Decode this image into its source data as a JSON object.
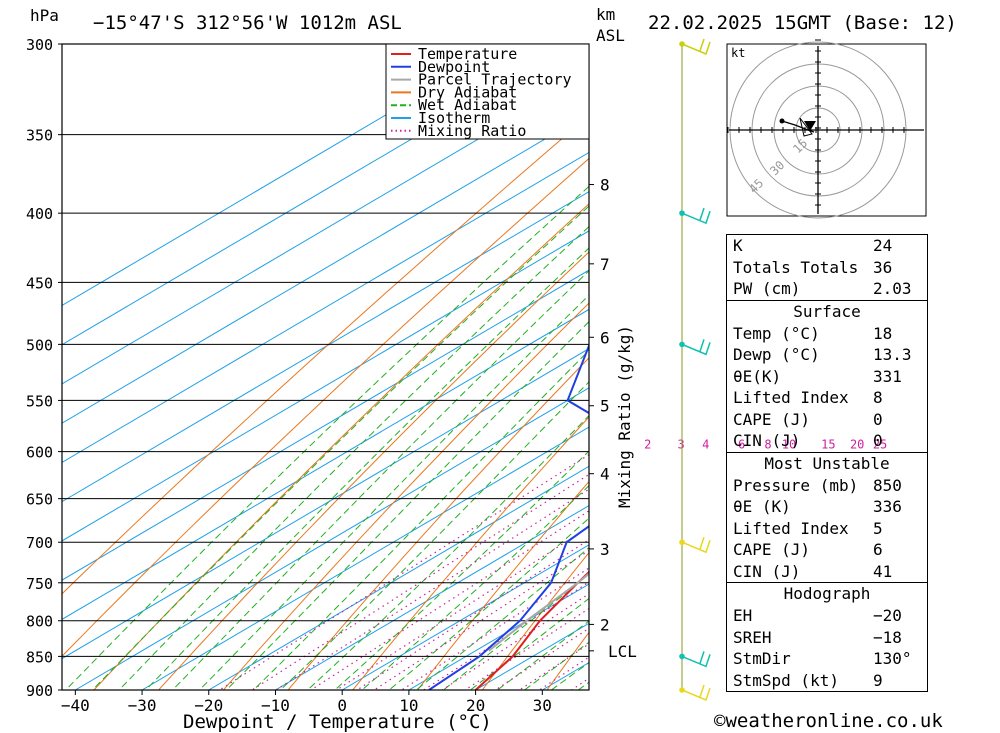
{
  "header": {
    "p_unit": "hPa",
    "location": "−15°47'S  312°56'W  1012m  ASL",
    "km_unit_line1": "km",
    "km_unit_line2": "ASL",
    "datetime": "22.02.2025  15GMT  (Base: 12)"
  },
  "footer": "©weatheronline.co.uk",
  "chart_data": {
    "type": "skew-t",
    "xlabel": "Dewpoint / Temperature (°C)",
    "right_axis_label": "Mixing Ratio (g/kg)",
    "pressure_levels": [
      300,
      350,
      400,
      450,
      500,
      550,
      600,
      650,
      700,
      750,
      800,
      850,
      900
    ],
    "pressure_range": [
      300,
      900
    ],
    "temp_ticks": [
      -40,
      -30,
      -20,
      -10,
      0,
      10,
      20,
      30
    ],
    "temp_range_at_bottom": [
      -42,
      37
    ],
    "km_ticks": [
      {
        "label": "8",
        "p": 381
      },
      {
        "label": "7",
        "p": 436
      },
      {
        "label": "6",
        "p": 494
      },
      {
        "label": "5",
        "p": 555
      },
      {
        "label": "4",
        "p": 623
      },
      {
        "label": "3",
        "p": 708
      },
      {
        "label": "2",
        "p": 805
      },
      {
        "label": "LCL",
        "p": 842
      }
    ],
    "mixing_ratio_labels": [
      "2",
      "3",
      "4",
      "6",
      "8",
      "10",
      "15",
      "20",
      "25"
    ],
    "mixing_ratio_values": [
      2,
      3,
      4,
      6,
      8,
      10,
      15,
      20,
      25
    ],
    "legend": [
      "Temperature",
      "Dewpoint",
      "Parcel Trajectory",
      "Dry Adiabat",
      "Wet Adiabat",
      "Isotherm",
      "Mixing Ratio"
    ],
    "colors": {
      "temperature": "#e02020",
      "dewpoint": "#2040e0",
      "parcel": "#a8a8a8",
      "dry_adiabat": "#e87820",
      "wet_adiabat": "#20b020",
      "isotherm": "#20a0e8",
      "mixing_ratio": "#d0209c"
    },
    "series": [
      {
        "name": "Temperature",
        "points": [
          [
            300,
            -34
          ],
          [
            350,
            -27
          ],
          [
            400,
            -19
          ],
          [
            450,
            -11
          ],
          [
            500,
            -6
          ],
          [
            550,
            -3
          ],
          [
            600,
            -4
          ],
          [
            650,
            -1
          ],
          [
            700,
            4
          ],
          [
            750,
            8
          ],
          [
            800,
            12
          ],
          [
            850,
            17
          ],
          [
            900,
            20
          ]
        ]
      },
      {
        "name": "Dewpoint",
        "points": [
          [
            300,
            -62
          ],
          [
            350,
            -54
          ],
          [
            400,
            -55
          ],
          [
            450,
            -62
          ],
          [
            500,
            -51
          ],
          [
            550,
            -40
          ],
          [
            600,
            -14
          ],
          [
            650,
            -6
          ],
          [
            700,
            -4
          ],
          [
            750,
            4
          ],
          [
            800,
            9
          ],
          [
            850,
            12
          ],
          [
            900,
            13
          ]
        ]
      },
      {
        "name": "Parcel Trajectory",
        "points": [
          [
            300,
            -47
          ],
          [
            350,
            -35
          ],
          [
            400,
            -25
          ],
          [
            450,
            -17
          ],
          [
            500,
            -10
          ],
          [
            550,
            -5
          ],
          [
            600,
            -1
          ],
          [
            650,
            3
          ],
          [
            700,
            5
          ],
          [
            750,
            8
          ],
          [
            800,
            10
          ],
          [
            842,
            12
          ]
        ]
      }
    ],
    "wind_barbs": [
      {
        "p": 300,
        "color": "#c8d010"
      },
      {
        "p": 400,
        "color": "#10c0b0"
      },
      {
        "p": 500,
        "color": "#10c0b0"
      },
      {
        "p": 700,
        "color": "#e8d820"
      },
      {
        "p": 850,
        "color": "#10c0b0"
      },
      {
        "p": 900,
        "color": "#e8d820"
      }
    ]
  },
  "hodograph": {
    "unit": "kt",
    "ring_labels": [
      "15",
      "30",
      "45"
    ]
  },
  "indices": {
    "rows": [
      {
        "label": "K",
        "value": "24"
      },
      {
        "label": "Totals Totals",
        "value": "36"
      },
      {
        "label": "PW (cm)",
        "value": "2.03"
      }
    ]
  },
  "surface": {
    "title": "Surface",
    "rows": [
      {
        "label": "Temp (°C)",
        "value": "18"
      },
      {
        "label": "Dewp (°C)",
        "value": "13.3"
      },
      {
        "label": "θE(K)",
        "value": "331"
      },
      {
        "label": "Lifted Index",
        "value": "8"
      },
      {
        "label": "CAPE (J)",
        "value": "0"
      },
      {
        "label": "CIN (J)",
        "value": "0"
      }
    ]
  },
  "most_unstable": {
    "title": "Most Unstable",
    "rows": [
      {
        "label": "Pressure (mb)",
        "value": "850"
      },
      {
        "label": "θE (K)",
        "value": "336"
      },
      {
        "label": "Lifted Index",
        "value": "5"
      },
      {
        "label": "CAPE (J)",
        "value": "6"
      },
      {
        "label": "CIN (J)",
        "value": "41"
      }
    ]
  },
  "hodograph_table": {
    "title": "Hodograph",
    "rows": [
      {
        "label": "EH",
        "value": "−20"
      },
      {
        "label": "SREH",
        "value": "−18"
      },
      {
        "label": "StmDir",
        "value": "130°"
      },
      {
        "label": "StmSpd (kt)",
        "value": "9"
      }
    ]
  }
}
